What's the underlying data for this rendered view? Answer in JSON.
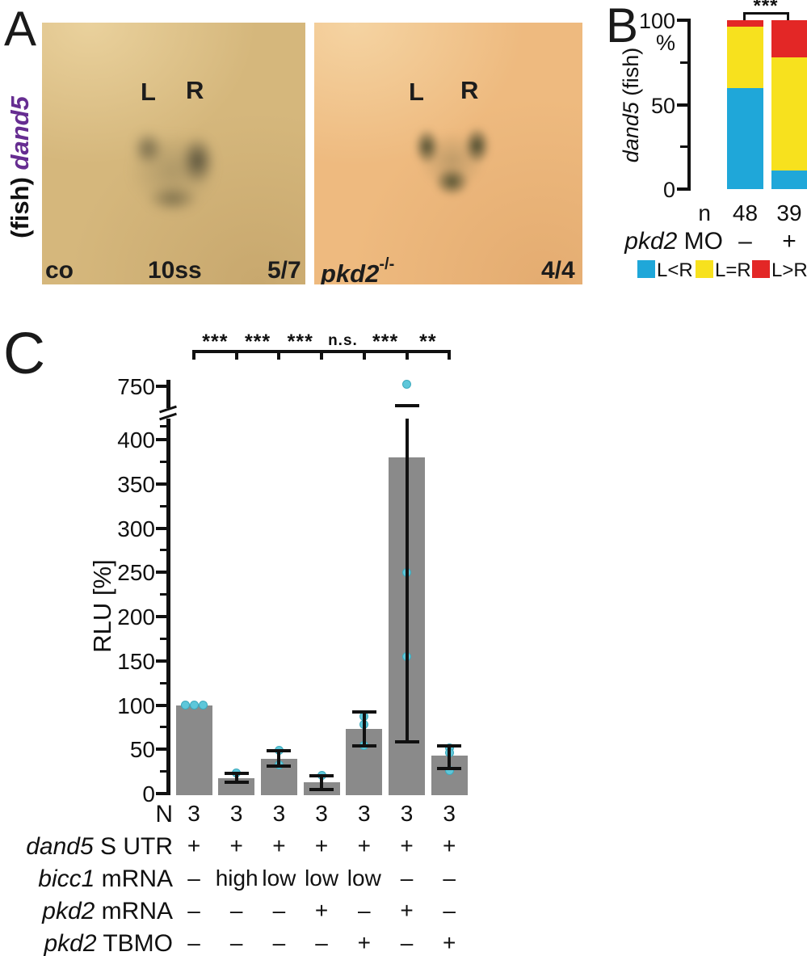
{
  "panels": {
    "a": "A",
    "b": "B",
    "c": "C"
  },
  "panel_a": {
    "side_label": {
      "prefix": "(fish) ",
      "gene": "dand5",
      "gene_color": "#662d91"
    },
    "left_image": {
      "label_l": "L",
      "label_r": "R",
      "condition": "co",
      "stage": "10ss",
      "fraction": "5/7"
    },
    "right_image": {
      "label_l": "L",
      "label_r": "R",
      "genotype": "pkd2",
      "genotype_superscript": "-/-",
      "fraction": "4/4"
    },
    "colors": {
      "left_bg": "#d5b77c",
      "right_bg": "#eeba7f"
    }
  },
  "chart_data": [
    {
      "type": "bar",
      "stacked": true,
      "panel": "B",
      "title": "",
      "ylabel": {
        "italic": "dand5",
        "rest": " (fish)"
      },
      "y_unit": "%",
      "ylim": [
        0,
        100
      ],
      "yticks": [
        0,
        50,
        100
      ],
      "yticks_minor": [
        25,
        75
      ],
      "grid": false,
      "categories": [
        "–",
        "+"
      ],
      "category_row_label": {
        "italic": "pkd2",
        "rest": " MO"
      },
      "n_row": {
        "label": "n",
        "values": [
          "48",
          "39"
        ]
      },
      "series": [
        {
          "name": "L<R",
          "color": "#1fa7d9",
          "values": [
            60,
            11
          ]
        },
        {
          "name": "L=R",
          "color": "#f7e11e",
          "values": [
            36,
            67
          ]
        },
        {
          "name": "L>R",
          "color": "#e32726",
          "values": [
            4,
            22
          ]
        }
      ],
      "significance": {
        "label": "***"
      },
      "legend_position": "bottom"
    },
    {
      "type": "bar",
      "panel": "C",
      "title": "",
      "ylabel": "RLU [%]",
      "ylim": [
        0,
        420
      ],
      "yticks": [
        0,
        50,
        100,
        150,
        200,
        250,
        300,
        350,
        400
      ],
      "yticks_minor": [
        25,
        75,
        125,
        175,
        225,
        275,
        325,
        375
      ],
      "axis_break": {
        "above_value": 420,
        "top_tick": 750
      },
      "grid": false,
      "bar_color": "#8a8a8a",
      "dot_color": "#5ec7da",
      "bars": [
        {
          "value": 100,
          "err": null,
          "dots": [
            100,
            100,
            100
          ]
        },
        {
          "value": 17,
          "err": [
            13,
            23
          ],
          "dots": [
            23
          ]
        },
        {
          "value": 39,
          "err": [
            31,
            48
          ],
          "dots": [
            49,
            32
          ]
        },
        {
          "value": 13,
          "err": [
            5,
            20
          ],
          "dots": [
            21
          ]
        },
        {
          "value": 73,
          "err": [
            54,
            92
          ],
          "dots": [
            87,
            78,
            54
          ]
        },
        {
          "value": 380,
          "err": [
            58,
            550
          ],
          "dots": [
            770,
            250,
            155
          ]
        },
        {
          "value": 43,
          "err": [
            28,
            54
          ],
          "dots": [
            52,
            46,
            26
          ]
        }
      ],
      "sig_labels": [
        "***",
        "***",
        "***",
        "n.s.",
        "***",
        "**"
      ],
      "table_rows": [
        {
          "label": {
            "italic": "",
            "rest": "N"
          },
          "values": [
            "3",
            "3",
            "3",
            "3",
            "3",
            "3",
            "3"
          ]
        },
        {
          "label": {
            "italic": "dand5",
            "rest": " S UTR"
          },
          "values": [
            "+",
            "+",
            "+",
            "+",
            "+",
            "+",
            "+"
          ]
        },
        {
          "label": {
            "italic": "bicc1",
            "rest": " mRNA"
          },
          "values": [
            "–",
            "high",
            "low",
            "low",
            "low",
            "–",
            "–"
          ]
        },
        {
          "label": {
            "italic": "pkd2",
            "rest": " mRNA"
          },
          "values": [
            "–",
            "–",
            "–",
            "+",
            "–",
            "+",
            "–"
          ]
        },
        {
          "label": {
            "italic": "pkd2",
            "rest": " TBMO"
          },
          "values": [
            "–",
            "–",
            "–",
            "–",
            "+",
            "–",
            "+"
          ]
        }
      ]
    }
  ]
}
